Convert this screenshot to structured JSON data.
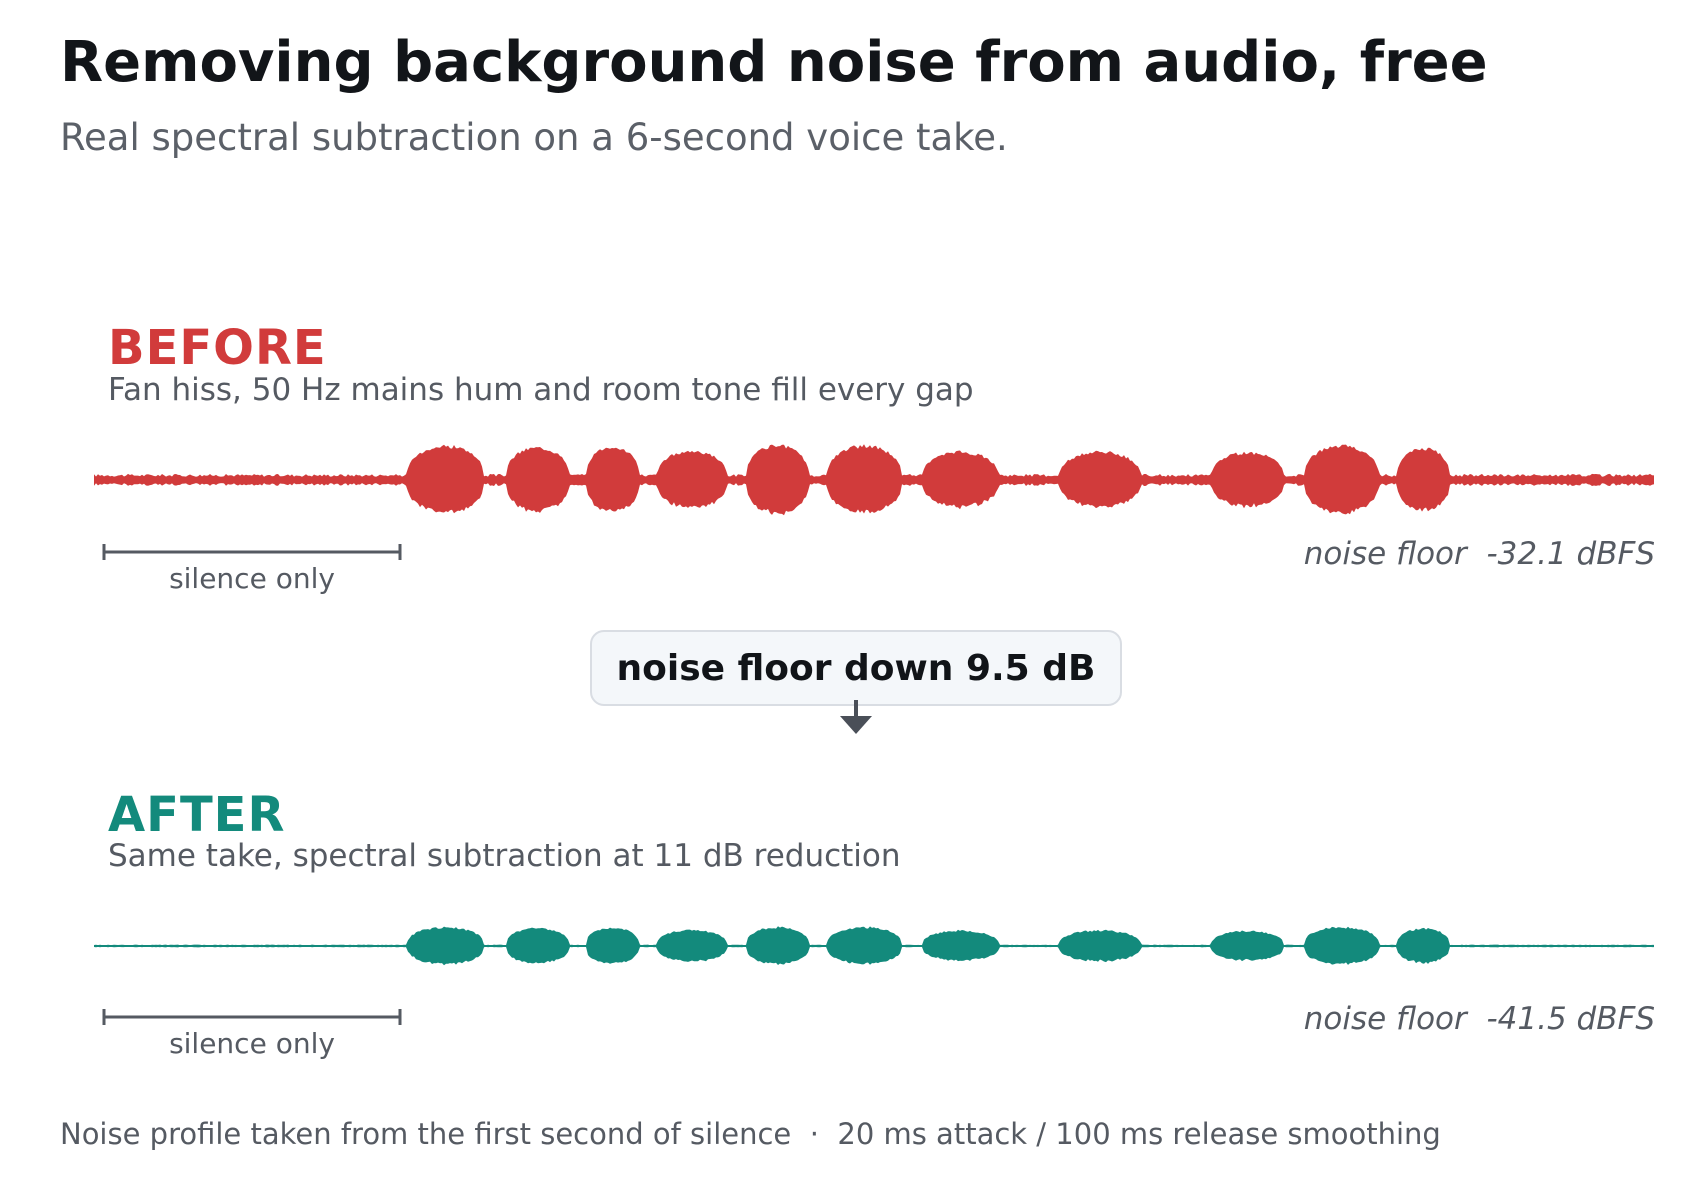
{
  "title": "Removing background noise from audio, free",
  "subtitle": "Real spectral subtraction on a 6-second voice take.",
  "before": {
    "label": "BEFORE",
    "description": "Fan hiss, 50 Hz mains hum and room tone fill every gap",
    "silence_label": "silence only",
    "noise_floor_text": "noise floor  -32.1 dBFS",
    "color": "#d13b3b",
    "noise_level": 0.13,
    "burst_level": 1.0
  },
  "callout": {
    "text": "noise floor down 9.5 dB"
  },
  "after": {
    "label": "AFTER",
    "description": "Same take, spectral subtraction at 11 dB reduction",
    "silence_label": "silence only",
    "noise_floor_text": "noise floor  -41.5 dBFS",
    "color": "#138a7c",
    "noise_level": 0.03,
    "burst_level": 0.55
  },
  "footnote": "Noise profile taken from the first second of silence  ·  20 ms attack / 100 ms release smoothing"
}
